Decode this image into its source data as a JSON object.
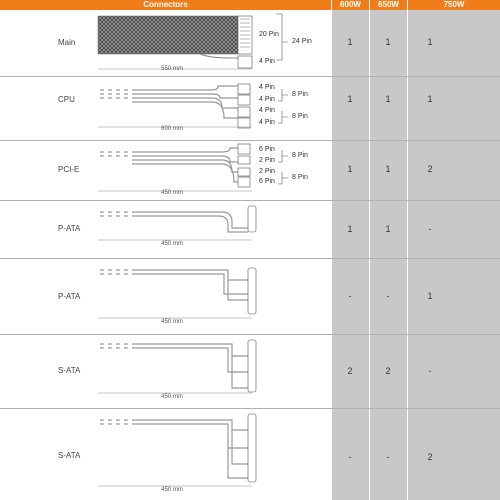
{
  "header": {
    "connectors": "Connectors",
    "w600": "600W",
    "w650": "650W",
    "w750": "750W"
  },
  "colors": {
    "header": "#f07d1a",
    "wattage_column": "#c8c8c8"
  },
  "rows": [
    {
      "label": "Main",
      "length": "550 mm",
      "pins": [
        "20 Pin",
        "4 Pin",
        "24 Pin"
      ],
      "v600": "1",
      "v650": "1",
      "v750": "1"
    },
    {
      "label": "CPU",
      "length": "600 mm",
      "pins": [
        "4 Pin",
        "4 Pin",
        "4 Pin",
        "4 Pin",
        "8 Pin",
        "8 Pin"
      ],
      "v600": "1",
      "v650": "1",
      "v750": "1"
    },
    {
      "label": "PCI-E",
      "length": "450 mm",
      "pins": [
        "6 Pin",
        "2 Pin",
        "2 Pin",
        "6 Pin",
        "8 Pin",
        "8 Pin"
      ],
      "v600": "1",
      "v650": "1",
      "v750": "2"
    },
    {
      "label": "P-ATA",
      "length": "450 mm",
      "v600": "1",
      "v650": "1",
      "v750": "-"
    },
    {
      "label": "P-ATA",
      "length": "450 mm",
      "v600": "-",
      "v650": "-",
      "v750": "1"
    },
    {
      "label": "S-ATA",
      "length": "450 mm",
      "v600": "2",
      "v650": "2",
      "v750": "-"
    },
    {
      "label": "S-ATA",
      "length": "450 mm",
      "v600": "-",
      "v650": "-",
      "v750": "2"
    }
  ]
}
